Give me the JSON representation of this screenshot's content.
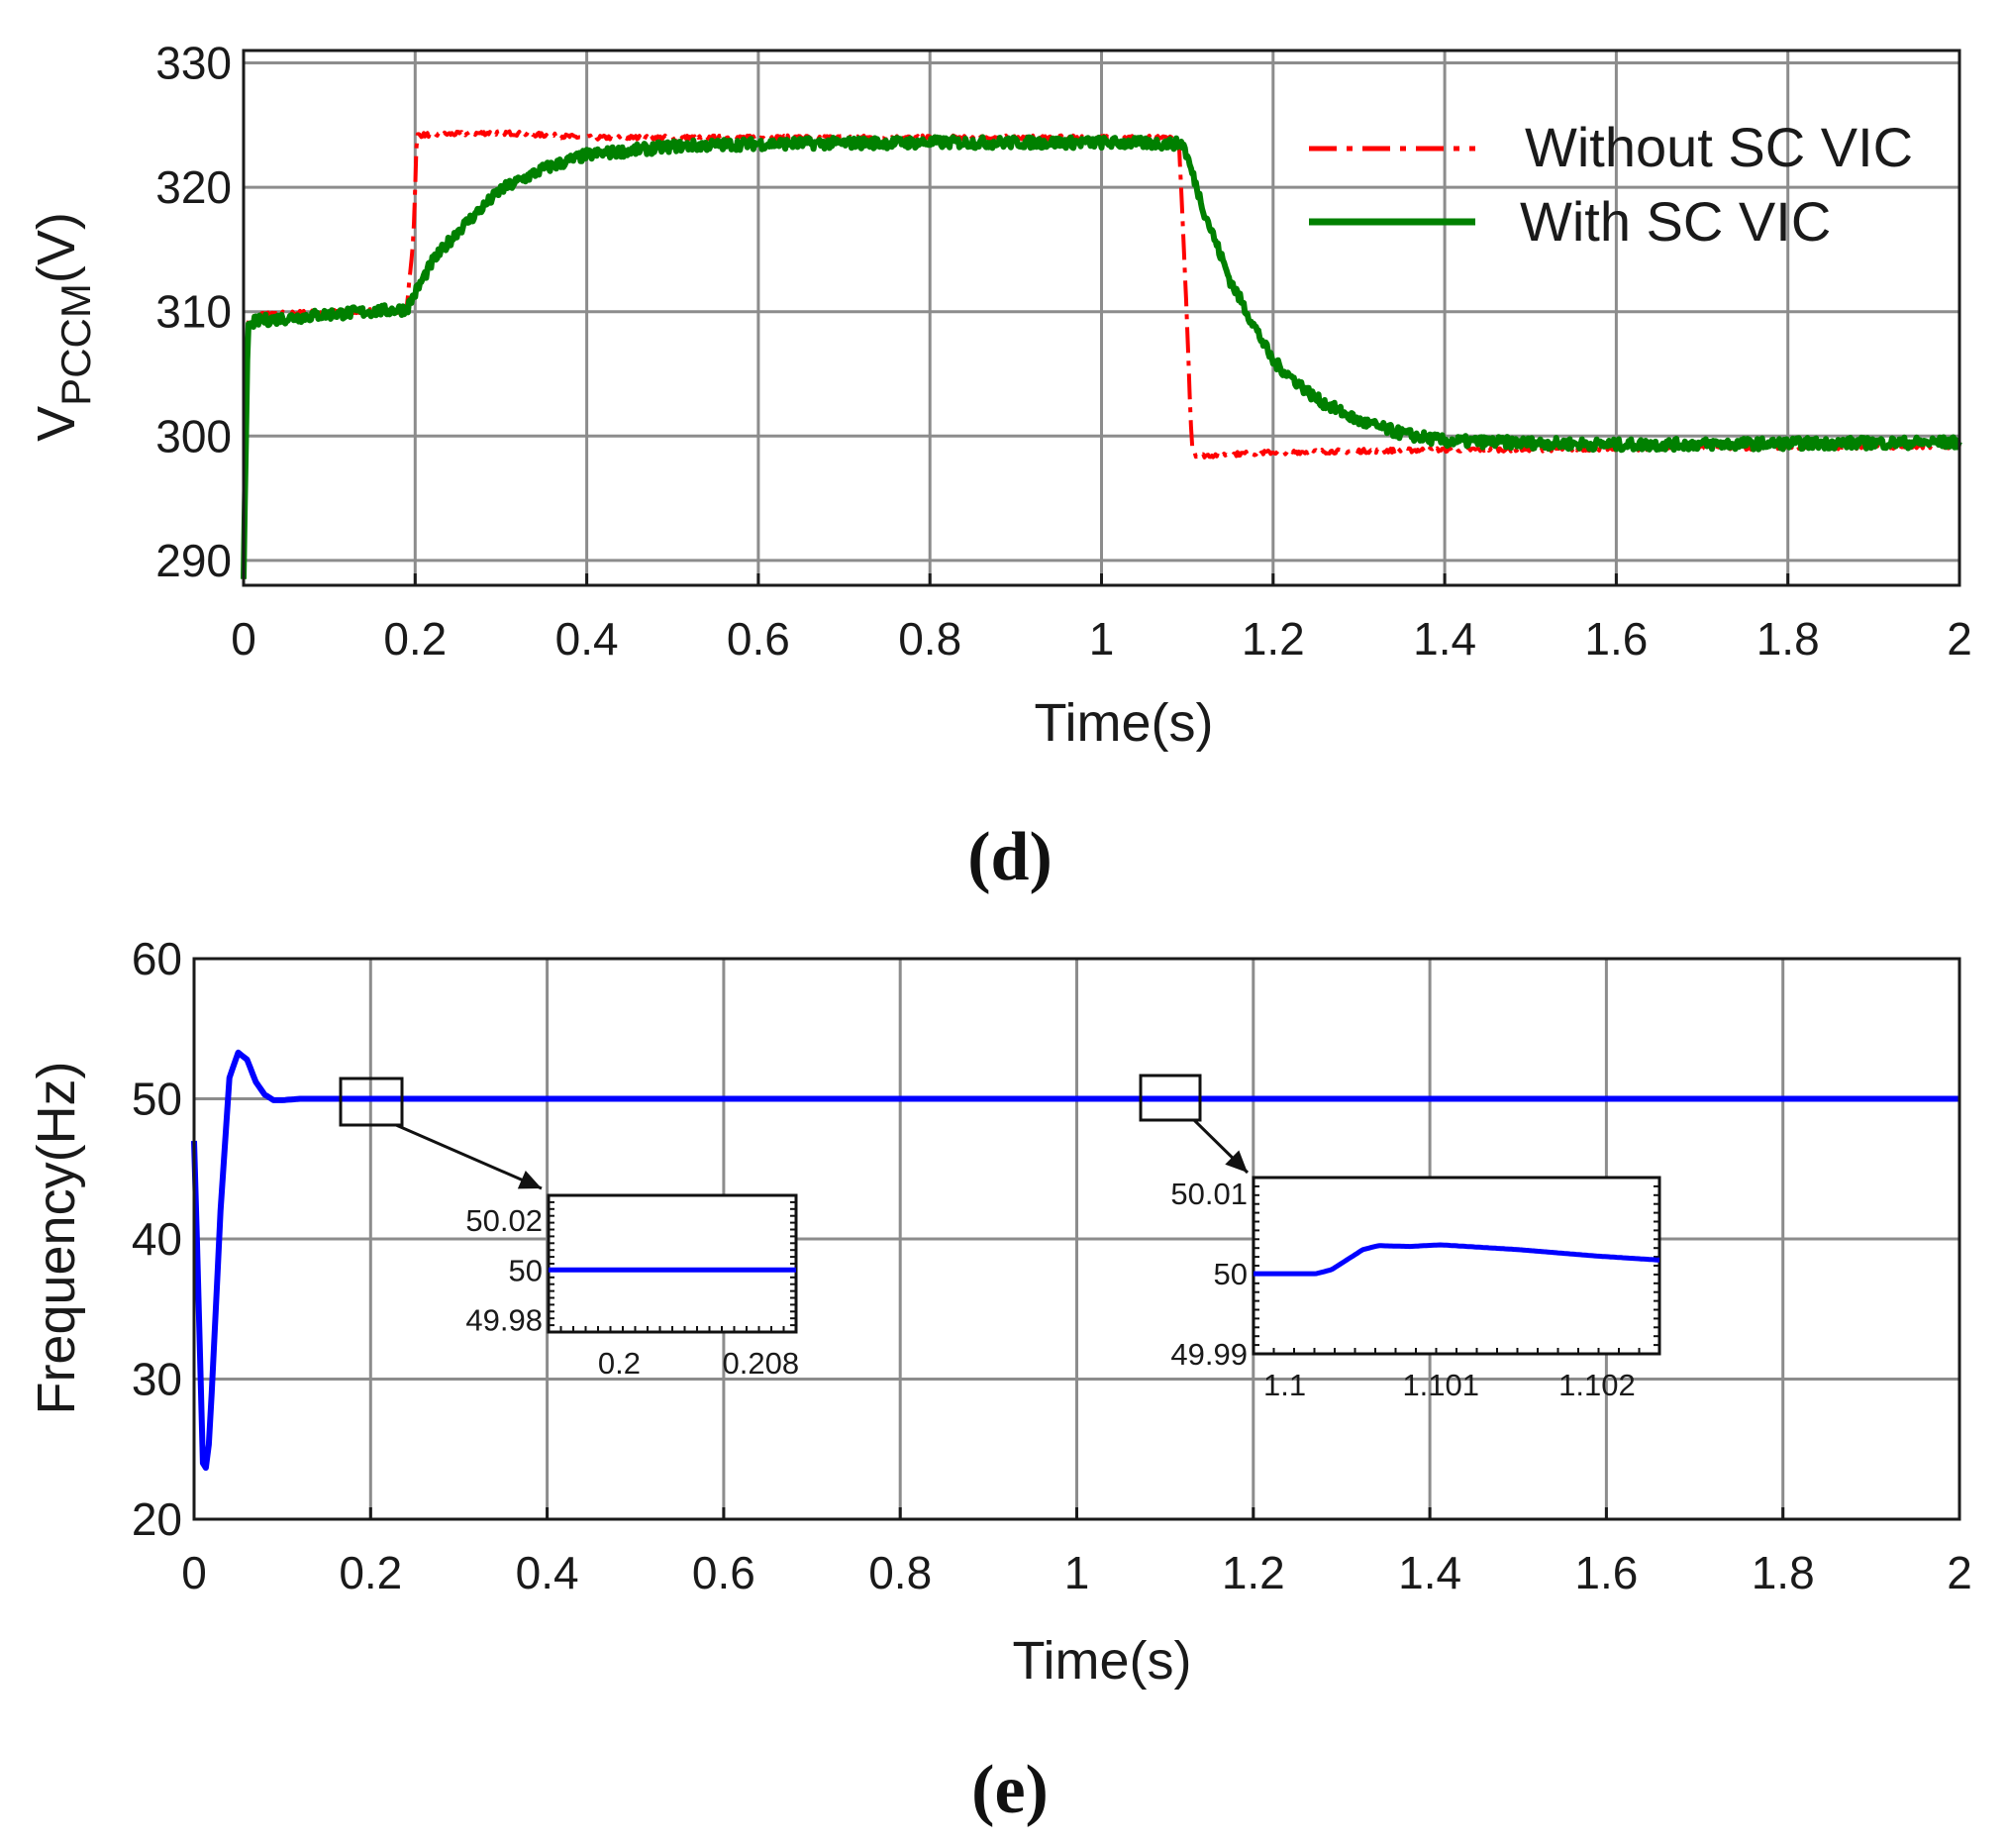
{
  "chart_data": [
    {
      "type": "line",
      "panel_label": "d",
      "title": "",
      "xlabel": "Time(s)",
      "ylabel": "V",
      "ylabel_subscript": "PCCM",
      "ylabel_unit": "(V)",
      "xlim": [
        0,
        2
      ],
      "ylim": [
        288,
        331
      ],
      "xticks": [
        0,
        0.2,
        0.4,
        0.6,
        0.8,
        1,
        1.2,
        1.4,
        1.6,
        1.8,
        2
      ],
      "xtick_labels": [
        "0",
        "0.2",
        "0.4",
        "0.6",
        "0.8",
        "1",
        "1.2",
        "1.4",
        "1.6",
        "1.8",
        "2"
      ],
      "yticks": [
        290,
        300,
        310,
        320,
        330
      ],
      "ytick_labels": [
        "290",
        "300",
        "310",
        "320",
        "330"
      ],
      "grid": true,
      "legend_position": "top-right",
      "series": [
        {
          "name": "Without SC VIC",
          "color": "#ff0000",
          "style": "dash-dot",
          "x": [
            0,
            0.005,
            0.02,
            0.1,
            0.19,
            0.198,
            0.202,
            0.25,
            0.3,
            0.4,
            0.6,
            0.8,
            1.0,
            1.09,
            1.098,
            1.105,
            1.11,
            1.2,
            1.4,
            1.6,
            1.8,
            2.0
          ],
          "y": [
            288.5,
            309.5,
            309.8,
            310.0,
            310.1,
            316,
            324.2,
            324.3,
            324.4,
            324.0,
            324.0,
            324.0,
            324.0,
            324.0,
            312,
            299.5,
            298.4,
            298.7,
            298.9,
            299.0,
            299.1,
            299.2
          ]
        },
        {
          "name": "With SC VIC",
          "color": "#008000",
          "style": "solid",
          "x": [
            0,
            0.005,
            0.02,
            0.1,
            0.19,
            0.2,
            0.22,
            0.25,
            0.3,
            0.35,
            0.4,
            0.5,
            0.6,
            0.8,
            1.0,
            1.095,
            1.12,
            1.15,
            1.2,
            1.25,
            1.3,
            1.35,
            1.4,
            1.6,
            1.8,
            2.0
          ],
          "y": [
            288.5,
            309.0,
            309.3,
            309.8,
            310.2,
            311.5,
            314.0,
            316.5,
            319.8,
            321.5,
            322.6,
            323.3,
            323.5,
            323.6,
            323.6,
            323.5,
            318.0,
            312.5,
            306.0,
            303.0,
            301.2,
            300.2,
            299.6,
            299.3,
            299.4,
            299.5
          ]
        }
      ]
    },
    {
      "type": "line",
      "panel_label": "e",
      "title": "",
      "xlabel": "Time(s)",
      "ylabel": "Frequency(Hz)",
      "xlim": [
        0,
        2
      ],
      "ylim": [
        20,
        60
      ],
      "xticks": [
        0,
        0.2,
        0.4,
        0.6,
        0.8,
        1,
        1.2,
        1.4,
        1.6,
        1.8,
        2
      ],
      "xtick_labels": [
        "0",
        "0.2",
        "0.4",
        "0.6",
        "0.8",
        "1",
        "1.2",
        "1.4",
        "1.6",
        "1.8",
        "2"
      ],
      "yticks": [
        20,
        30,
        40,
        50,
        60
      ],
      "ytick_labels": [
        "20",
        "30",
        "40",
        "50",
        "60"
      ],
      "grid": true,
      "series": [
        {
          "name": "Frequency",
          "color": "#0000ff",
          "x": [
            0,
            0.005,
            0.01,
            0.015,
            0.02,
            0.03,
            0.04,
            0.05,
            0.06,
            0.07,
            0.08,
            0.09,
            0.1,
            0.12,
            0.15,
            0.2,
            1.0,
            1.1,
            2.0
          ],
          "y": [
            47.0,
            36.0,
            24.0,
            23.5,
            29.0,
            42.0,
            51.5,
            53.3,
            52.8,
            51.2,
            50.3,
            49.9,
            49.9,
            50.0,
            50.0,
            50.0,
            50.0,
            50.0,
            50.0
          ]
        }
      ],
      "insets": [
        {
          "xlim": [
            0.196,
            0.21
          ],
          "ylim": [
            49.975,
            50.03
          ],
          "xticks": [
            0.2,
            0.208
          ],
          "xtick_labels": [
            "0.2",
            "0.208"
          ],
          "yticks": [
            49.98,
            50,
            50.02
          ],
          "ytick_labels": [
            "49.98",
            "50",
            "50.02"
          ],
          "x": [
            0.196,
            0.21
          ],
          "y": [
            50.0,
            50.0
          ]
        },
        {
          "xlim": [
            1.0998,
            1.1024
          ],
          "ylim": [
            49.99,
            50.012
          ],
          "xticks": [
            1.1,
            1.101,
            1.102
          ],
          "xtick_labels": [
            "1.1",
            "1.101",
            "1.102"
          ],
          "yticks": [
            49.99,
            50,
            50.01
          ],
          "ytick_labels": [
            "49.99",
            "50",
            "50.01"
          ],
          "x": [
            1.0998,
            1.1,
            1.1002,
            1.1003,
            1.1005,
            1.1006,
            1.1008,
            1.101,
            1.1015,
            1.102,
            1.1024
          ],
          "y": [
            50.0,
            50.0,
            50.0,
            50.0005,
            50.003,
            50.0035,
            50.0034,
            50.0036,
            50.003,
            50.0022,
            50.0017
          ]
        }
      ]
    }
  ]
}
